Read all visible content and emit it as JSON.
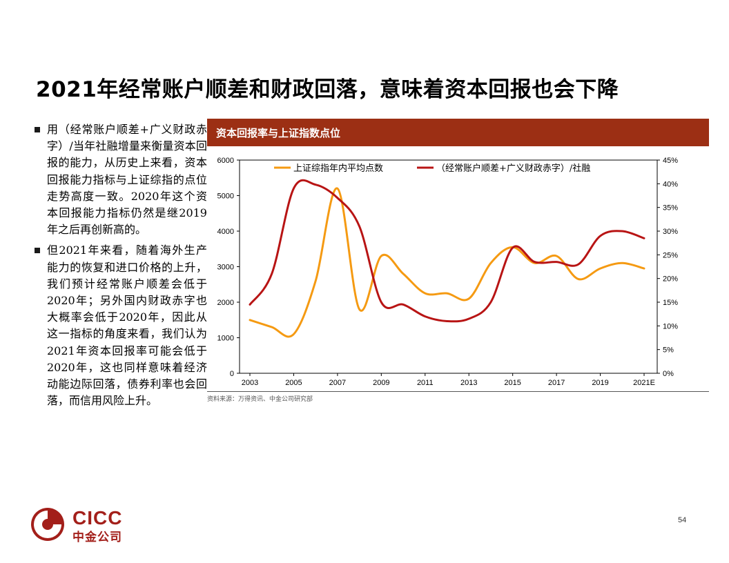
{
  "page": {
    "title": "2021年经常账户顺差和财政回落，意味着资本回报也会下降",
    "page_number": "54"
  },
  "bullets": [
    {
      "text": "用（经常账户顺差+广义财政赤字）/当年社融增量来衡量资本回报的能力，从历史上来看，资本回报能力指标与上证综指的点位走势高度一致。2020年这个资本回报能力指标仍然是继2019年之后再创新高的。"
    },
    {
      "text": "但2021年来看，随着海外生产能力的恢复和进口价格的上升，我们预计经常账户顺差会低于2020年；另外国内财政赤字也大概率会低于2020年，因此从这一指标的角度来看，我们认为2021年资本回报率可能会低于2020年，这也同样意味着经济动能边际回落，债券利率也会回落，而信用风险上升。"
    }
  ],
  "chart_header": "资本回报率与上证指数点位",
  "source_note": "资料来源：万得资讯、中金公司研究部",
  "logo": {
    "en": "CICC",
    "cn": "中金公司"
  },
  "colors": {
    "header_bg": "#9c2f14",
    "series_index": "#f59a12",
    "series_ratio": "#b81414",
    "logo": "#a31f1a"
  },
  "chart_data": {
    "type": "line",
    "x": [
      2003,
      2004,
      2005,
      2006,
      2007,
      2008,
      2009,
      2010,
      2011,
      2012,
      2013,
      2014,
      2015,
      2016,
      2017,
      2018,
      2019,
      2020,
      2021
    ],
    "x_tick_labels": [
      "2003",
      "2005",
      "2007",
      "2009",
      "2011",
      "2013",
      "2015",
      "2017",
      "2019",
      "2021E"
    ],
    "ylim_left": [
      0,
      6000
    ],
    "yticks_left": [
      "0",
      "1000",
      "2000",
      "3000",
      "4000",
      "5000",
      "6000"
    ],
    "ylim_right": [
      0,
      0.45
    ],
    "yticks_right": [
      "0%",
      "5%",
      "10%",
      "15%",
      "20%",
      "25%",
      "30%",
      "35%",
      "40%",
      "45%"
    ],
    "series": [
      {
        "name": "上证综指年内平均点数",
        "axis": "left",
        "values": [
          1500,
          1300,
          1100,
          2600,
          5200,
          1800,
          3300,
          2800,
          2250,
          2250,
          2100,
          3100,
          3550,
          3100,
          3300,
          2650,
          2950,
          3100,
          2950
        ]
      },
      {
        "name": "（经常账户顺差+广义财政赤字）/社融",
        "axis": "right",
        "values": [
          0.145,
          0.21,
          0.39,
          0.398,
          0.37,
          0.31,
          0.15,
          0.145,
          0.12,
          0.11,
          0.115,
          0.15,
          0.265,
          0.235,
          0.235,
          0.23,
          0.29,
          0.3,
          0.285
        ]
      }
    ],
    "legend_position": "top",
    "grid": false
  }
}
